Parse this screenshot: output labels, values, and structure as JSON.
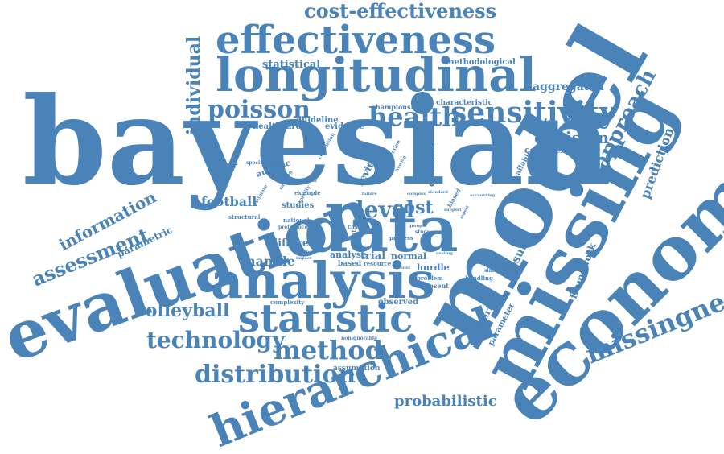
{
  "palette": {
    "word": "#4a83b8",
    "background": "#ffffff"
  },
  "words": [
    "bayesian",
    "model",
    "missing",
    "economic",
    "evaluation",
    "data",
    "analysis",
    "longitudinal",
    "effectiveness",
    "hierarchical",
    "statistic",
    "sensitivity",
    "health",
    "poisson",
    "method",
    "distribution",
    "technology",
    "volleyball",
    "missingness",
    "cost-effectiveness",
    "assessment",
    "information",
    "approach",
    "individual",
    "decision",
    "prediction",
    "probabilistic",
    "level",
    "cost",
    "football",
    "handle",
    "trial",
    "normal",
    "result",
    "framework",
    "aggregated",
    "complexities",
    "statistical",
    "methodological",
    "healthcare",
    "guideline",
    "evidence",
    "characteristic",
    "championship",
    "parametric",
    "different",
    "studies",
    "analytic",
    "alternative",
    "structural",
    "observed",
    "bivariate",
    "parameter",
    "hurdle",
    "review",
    "outcome",
    "available",
    "complexity",
    "assumption",
    "present",
    "problem",
    "handling",
    "analyse",
    "based",
    "resource",
    "nonignorable",
    "uncertainty",
    "simulation",
    "national",
    "preference",
    "estimate",
    "example",
    "quality",
    "specification",
    "case",
    "point",
    "study",
    "ranking",
    "biased",
    "intervention",
    "conclusion",
    "restriction",
    "accounting",
    "response",
    "dealing",
    "aspect",
    "account",
    "failure",
    "complex",
    "standard",
    "impact",
    "support",
    "value",
    "group",
    "process",
    "framing",
    "outcomes"
  ]
}
